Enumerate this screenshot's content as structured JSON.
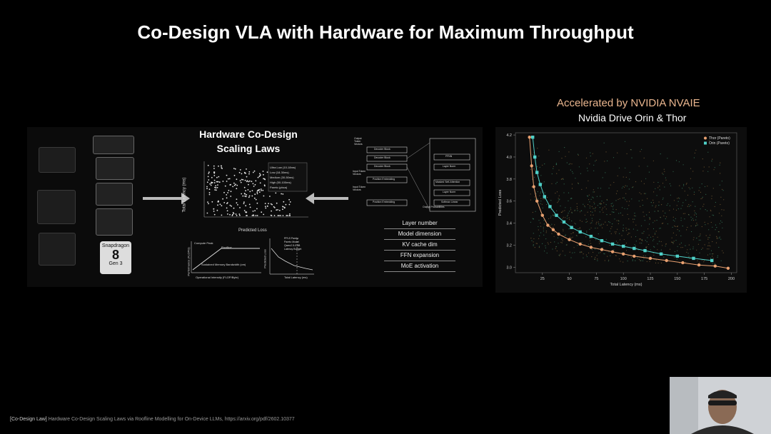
{
  "slide": {
    "title": "Co-Design VLA with Hardware for Maximum Throughput"
  },
  "left_panel": {
    "heading_line1": "Hardware Co-Design",
    "heading_line2": "Scaling Laws",
    "scatter_xlabel": "Predicted Loss",
    "scatter_ylabel": "Total Latency (ms)",
    "scatter_legend": [
      "Ultra Low (10-18ms)",
      "Low (18-30ms)",
      "Medium (30-50ms)",
      "High (50-100ms)",
      "Pareto (pbca)"
    ],
    "roofline_labels": [
      "Compute Peak",
      "Roofline",
      "Sustained Memory Bandwidth (cm)"
    ],
    "roofline_xlabel": "Operational Intensity (FLOP/Byte)",
    "roofline_ylabel": "Performance (FLOP/s)",
    "pareto_legend": [
      "PPLS Pareto",
      "Pareto Model",
      "Qwen2.5-0.5B",
      "Latency Budget"
    ],
    "pareto_xlabel": "Total Latency (ms)",
    "pareto_ylabel": "Predicted Loss",
    "snapdragon_brand": "Snapdragon",
    "snapdragon_num": "8",
    "snapdragon_gen": "Gen 3",
    "arch_labels": {
      "output_vectors": "Output Token Vectors",
      "input_vectors_1": "Input Token Vectors",
      "input_vectors_2": "Input Token Vectors",
      "decoder_block_1": "Decoder Block",
      "decoder_block_2": "Decoder Block",
      "decoder_block_3": "Decoder Block",
      "position_embedding_1": "Position Embedding",
      "position_embedding_2": "Position Embedding",
      "output_probabilities": "Output Probabilities",
      "ffnn": "FFNN",
      "layer_norm_1": "Layer Norm",
      "masked_attn": "Masked Self-Attention",
      "layer_norm_2": "Layer Norm",
      "softmax": "Softmax Linear"
    },
    "design_knobs": [
      "Layer number",
      "Model dimension",
      "KV cache dim",
      "FFN expansion",
      "MoE activation"
    ]
  },
  "right_panel": {
    "heading": "Accelerated by NVIDIA NVAIE",
    "subheading": "Nvidia Drive Orin & Thor"
  },
  "chart_data": {
    "type": "scatter",
    "xlabel": "Total Latency (ms)",
    "ylabel": "Predicted Loss",
    "xlim": [
      0,
      205
    ],
    "ylim": [
      2.95,
      4.22
    ],
    "xticks": [
      "25",
      "50",
      "75",
      "100",
      "125",
      "150",
      "175",
      "200"
    ],
    "yticks": [
      "3.0",
      "3.2",
      "3.4",
      "3.6",
      "3.8",
      "4.0",
      "4.2"
    ],
    "legend_placement": "top-right",
    "colors": {
      "thor": "#e8a070",
      "orin": "#4fd0c8"
    },
    "series": [
      {
        "name": "Thor (Pareto)",
        "x": [
          13,
          15,
          17,
          20,
          25,
          30,
          35,
          40,
          50,
          60,
          70,
          80,
          90,
          100,
          110,
          125,
          140,
          155,
          170,
          185,
          197
        ],
        "y": [
          4.18,
          3.92,
          3.73,
          3.6,
          3.47,
          3.38,
          3.34,
          3.3,
          3.25,
          3.21,
          3.18,
          3.16,
          3.14,
          3.12,
          3.1,
          3.08,
          3.06,
          3.04,
          3.02,
          3.01,
          2.99
        ]
      },
      {
        "name": "Orin (Pareto)",
        "x": [
          16,
          18,
          20,
          23,
          27,
          32,
          38,
          45,
          52,
          60,
          70,
          80,
          90,
          100,
          110,
          120,
          135,
          150,
          165,
          182
        ],
        "y": [
          4.18,
          4.0,
          3.86,
          3.75,
          3.64,
          3.55,
          3.47,
          3.41,
          3.36,
          3.32,
          3.28,
          3.24,
          3.21,
          3.19,
          3.17,
          3.15,
          3.12,
          3.1,
          3.08,
          3.06
        ]
      }
    ]
  },
  "footer": {
    "tag": "[Co-Design Law]",
    "text": " Hardware Co-Design Scaling Laws via Roofline Modelling for On-Device LLMs, https://arxiv.org/pdf/2602.10377"
  }
}
